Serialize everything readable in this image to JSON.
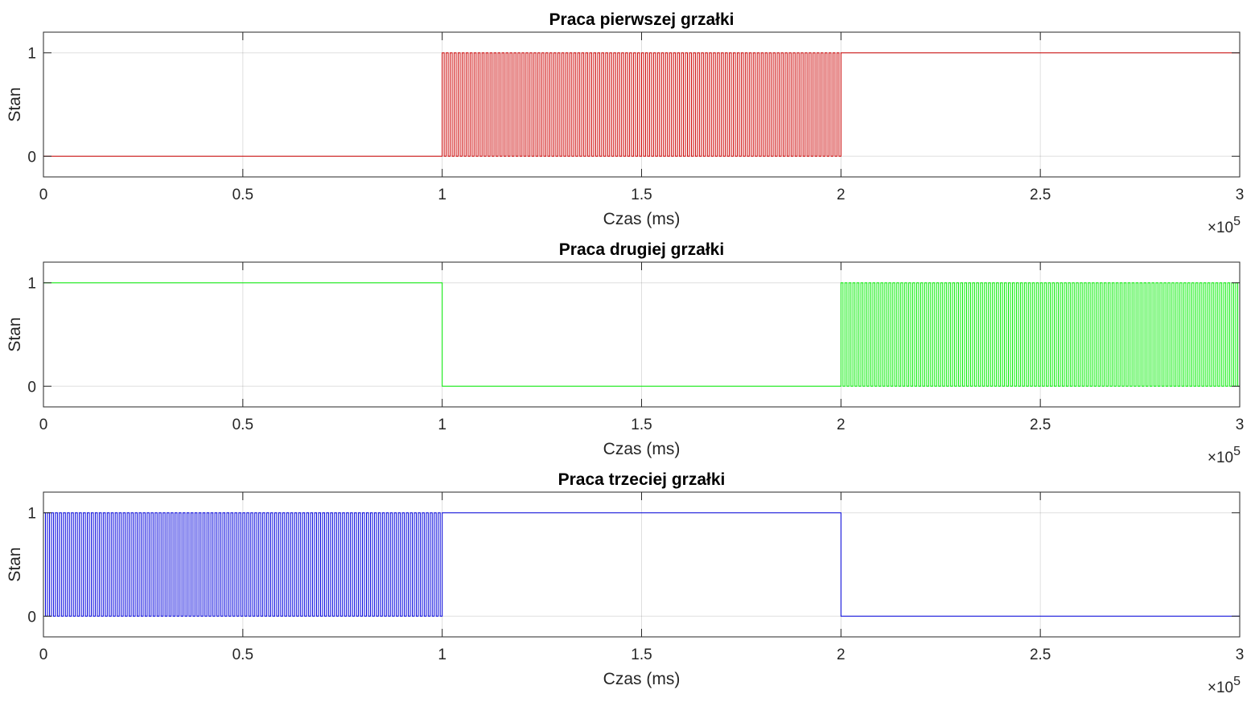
{
  "chart_data": [
    {
      "type": "line",
      "style": "step",
      "title": "Praca pierwszej grzałki",
      "xlabel": "Czas (ms)",
      "ylabel": "Stan",
      "xlim": [
        0,
        300000
      ],
      "ylim": [
        -0.2,
        1.2
      ],
      "xticks": [
        "0",
        "0.5",
        "1",
        "1.5",
        "2",
        "2.5",
        "3"
      ],
      "yticks": [
        "0",
        "1"
      ],
      "x_exponent": {
        "base": "×10",
        "power": "5"
      },
      "grid": true,
      "series": [
        {
          "color": "#cc0000",
          "segments": [
            {
              "from": 0,
              "to": 100000,
              "state": 0
            },
            {
              "from": 100000,
              "to": 200000,
              "state": "oscillating",
              "period": 1000
            },
            {
              "from": 200000,
              "to": 300000,
              "state": 1
            }
          ]
        }
      ]
    },
    {
      "type": "line",
      "style": "step",
      "title": "Praca drugiej grzałki",
      "xlabel": "Czas (ms)",
      "ylabel": "Stan",
      "xlim": [
        0,
        300000
      ],
      "ylim": [
        -0.2,
        1.2
      ],
      "xticks": [
        "0",
        "0.5",
        "1",
        "1.5",
        "2",
        "2.5",
        "3"
      ],
      "yticks": [
        "0",
        "1"
      ],
      "x_exponent": {
        "base": "×10",
        "power": "5"
      },
      "grid": true,
      "series": [
        {
          "color": "#00ee00",
          "segments": [
            {
              "from": 0,
              "to": 100000,
              "state": 1
            },
            {
              "from": 100000,
              "to": 200000,
              "state": 0
            },
            {
              "from": 200000,
              "to": 300000,
              "state": "oscillating",
              "period": 1000
            }
          ]
        }
      ]
    },
    {
      "type": "line",
      "style": "step",
      "title": "Praca trzeciej grzałki",
      "xlabel": "Czas (ms)",
      "ylabel": "Stan",
      "xlim": [
        0,
        300000
      ],
      "ylim": [
        -0.2,
        1.2
      ],
      "xticks": [
        "0",
        "0.5",
        "1",
        "1.5",
        "2",
        "2.5",
        "3"
      ],
      "yticks": [
        "0",
        "1"
      ],
      "x_exponent": {
        "base": "×10",
        "power": "5"
      },
      "grid": true,
      "series": [
        {
          "color": "#0000dd",
          "segments": [
            {
              "from": 0,
              "to": 100000,
              "state": "oscillating",
              "period": 1000
            },
            {
              "from": 100000,
              "to": 200000,
              "state": 1
            },
            {
              "from": 200000,
              "to": 300000,
              "state": 0
            }
          ]
        }
      ]
    }
  ]
}
